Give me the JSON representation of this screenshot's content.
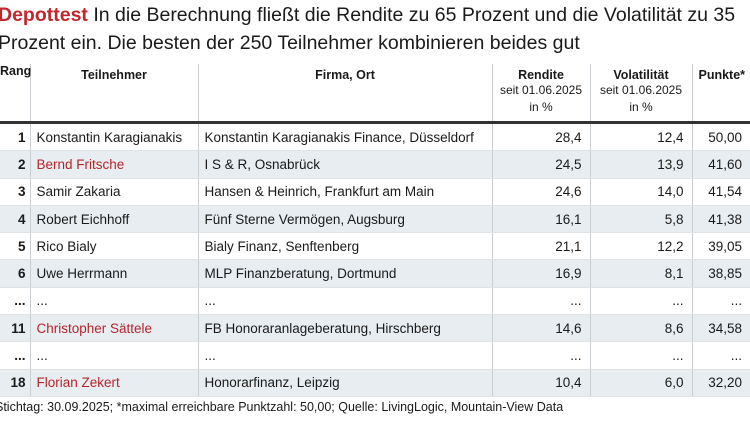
{
  "header": {
    "kicker": "Depottest",
    "title": "In die Berechnung fließt die Rendite zu 65 Prozent und die Volatilität zu 35 Prozent ein. Die besten der 250 Teilnehmer kombinieren beides gut"
  },
  "table": {
    "columns": [
      {
        "label": "Rang"
      },
      {
        "label": "Teilnehmer"
      },
      {
        "label": "Firma, Ort"
      },
      {
        "label": "Rendite",
        "sub": [
          "seit 01.06.2025",
          "in %"
        ]
      },
      {
        "label": "Volatilität",
        "sub": [
          "seit 01.06.2025",
          "in %"
        ]
      },
      {
        "label": "Punkte*"
      }
    ],
    "rows": [
      {
        "cells": [
          "1",
          "Konstantin Karagianakis",
          "Konstantin Karagianakis Finance, Düsseldorf",
          "28,4",
          "12,4",
          "50,00"
        ],
        "highlight": false
      },
      {
        "cells": [
          "2",
          "Bernd Fritsche",
          "I S & R, Osnabrück",
          "24,5",
          "13,9",
          "41,60"
        ],
        "highlight": true
      },
      {
        "cells": [
          "3",
          "Samir Zakaria",
          "Hansen & Heinrich, Frankfurt am Main",
          "24,6",
          "14,0",
          "41,54"
        ],
        "highlight": false
      },
      {
        "cells": [
          "4",
          "Robert Eichhoff",
          "Fünf Sterne Vermögen, Augsburg",
          "16,1",
          "5,8",
          "41,38"
        ],
        "highlight": false
      },
      {
        "cells": [
          "5",
          "Rico Bialy",
          "Bialy Finanz, Senftenberg",
          "21,1",
          "12,2",
          "39,05"
        ],
        "highlight": false
      },
      {
        "cells": [
          "6",
          "Uwe Herrmann",
          "MLP Finanzberatung, Dortmund",
          "16,9",
          "8,1",
          "38,85"
        ],
        "highlight": false
      },
      {
        "cells": [
          "...",
          "...",
          "...",
          "...",
          "...",
          "..."
        ],
        "highlight": false
      },
      {
        "cells": [
          "11",
          "Christopher Sättele",
          "FB Honoraranlageberatung, Hirschberg",
          "14,6",
          "8,6",
          "34,58"
        ],
        "highlight": true
      },
      {
        "cells": [
          "...",
          "...",
          "...",
          "...",
          "...",
          "..."
        ],
        "highlight": false
      },
      {
        "cells": [
          "18",
          "Florian Zekert",
          "Honorarfinanz, Leipzig",
          "10,4",
          "6,0",
          "32,20"
        ],
        "highlight": true
      }
    ]
  },
  "footer": "Stichtag: 30.09.2025; *maximal erreichbare Punktzahl: 50,00; Quelle: LivingLogic, Mountain-View Data"
}
